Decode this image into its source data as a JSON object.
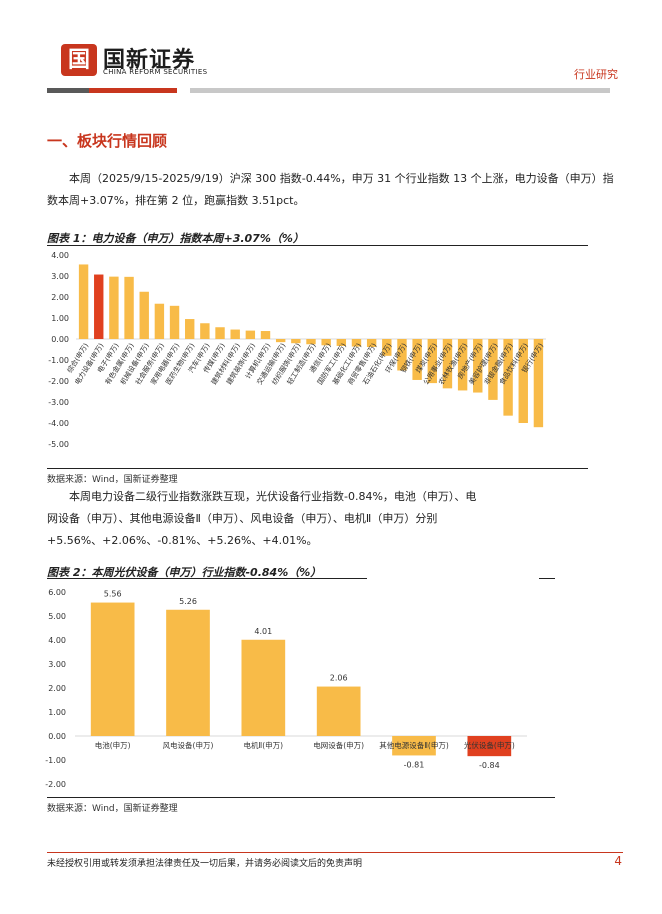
{
  "header": {
    "logo_glyph": "国",
    "company_name": "国新证券",
    "company_name_en": "CHINA REFORM SECURITIES",
    "report_type": "行业研究",
    "colors": {
      "accent": "#c8361e",
      "dark": "#595959",
      "gray": "#c8c8c8"
    }
  },
  "section": {
    "title": "一、板块行情回顾",
    "para1": "本周（2025/9/15-2025/9/19）沪深 300 指数-0.44%，申万 31 个行业指数 13 个上涨，电力设备（申万）指数本周+3.07%，排在第 2 位，跑赢指数 3.51pct。",
    "para2": "本周电力设备二级行业指数涨跌互现，光伏设备行业指数-0.84%，电池（申万）、电网设备（申万）、其他电源设备Ⅱ（申万）、风电设备（申万）、电机Ⅱ（申万）分别+5.56%、+2.06%、-0.81%、+5.26%、+4.01%。"
  },
  "figure1": {
    "title": "图表 1：电力设备（申万）指数本周+3.07%（%）",
    "source": "数据来源：Wind，国新证券整理"
  },
  "figure2": {
    "title": "图表 2：本周光伏设备（申万）行业指数-0.84%（%）",
    "source": "数据来源：Wind，国新证券整理"
  },
  "footer": {
    "disclaimer": "未经授权引用或转发须承担法律责任及一切后果，并请务必阅读文后的免责声明",
    "page_number": "4"
  },
  "chart_data": [
    {
      "type": "bar",
      "categories": [
        "综合(申万)",
        "电力设备(申万)",
        "电子(申万)",
        "有色金属(申万)",
        "机械设备(申万)",
        "社会服务(申万)",
        "家用电器(申万)",
        "医药生物(申万)",
        "汽车(申万)",
        "传媒(申万)",
        "建筑材料(申万)",
        "建筑装饰(申万)",
        "计算机(申万)",
        "交通运输(申万)",
        "纺织服饰(申万)",
        "轻工制造(申万)",
        "通信(申万)",
        "国防军工(申万)",
        "基础化工(申万)",
        "商贸零售(申万)",
        "石油石化(申万)",
        "环保(申万)",
        "钢铁(申万)",
        "煤炭(申万)",
        "公用事业(申万)",
        "农林牧渔(申万)",
        "房地产(申万)",
        "美容护理(申万)",
        "非银金融(申万)",
        "食品饮料(申万)",
        "银行(申万)"
      ],
      "values": [
        3.55,
        3.07,
        2.97,
        2.96,
        2.25,
        1.68,
        1.58,
        0.95,
        0.75,
        0.56,
        0.45,
        0.4,
        0.38,
        -0.15,
        -0.2,
        -0.25,
        -0.3,
        -0.33,
        -0.36,
        -0.38,
        -0.8,
        -1.5,
        -1.95,
        -2.1,
        -2.35,
        -2.45,
        -2.55,
        -2.9,
        -3.65,
        -4.0,
        -4.2
      ],
      "highlight_index": 1,
      "ylim": [
        -5,
        4
      ],
      "yticks": [
        "4.00",
        "3.00",
        "2.00",
        "1.00",
        "0.00",
        "-1.00",
        "-2.00",
        "-3.00",
        "-4.00",
        "-5.00"
      ],
      "colors": {
        "bar": "#f8bb48",
        "highlight": "#e0401f"
      }
    },
    {
      "type": "bar",
      "categories": [
        "电池(申万)",
        "风电设备(申万)",
        "电机Ⅱ(申万)",
        "电网设备(申万)",
        "其他电源设备Ⅱ(申万)",
        "光伏设备(申万)"
      ],
      "values": [
        5.56,
        5.26,
        4.01,
        2.06,
        -0.81,
        -0.84
      ],
      "labels": [
        "5.56",
        "5.26",
        "4.01",
        "2.06",
        "-0.81",
        "-0.84"
      ],
      "highlight_index": 5,
      "ylim": [
        -2,
        6
      ],
      "yticks": [
        "6.00",
        "5.00",
        "4.00",
        "3.00",
        "2.00",
        "1.00",
        "0.00",
        "-1.00",
        "-2.00"
      ],
      "colors": {
        "bar": "#f8bb48",
        "highlight": "#e0401f"
      }
    }
  ]
}
